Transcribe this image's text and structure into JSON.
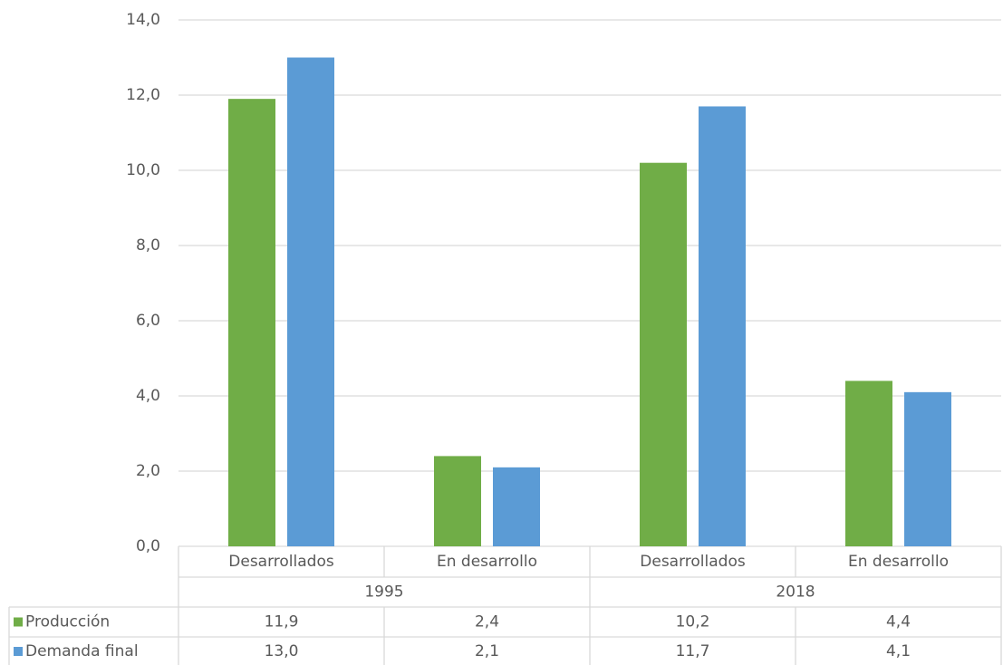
{
  "chart_data": {
    "type": "bar",
    "categories": [
      "Desarrollados",
      "En desarrollo",
      "Desarrollados",
      "En desarrollo"
    ],
    "category_groups": [
      "1995",
      "2018"
    ],
    "series": [
      {
        "name": "Producción",
        "color": "#70ad47",
        "values": [
          11.9,
          2.4,
          10.2,
          4.4
        ],
        "value_labels": [
          "11,9",
          "2,4",
          "10,2",
          "4,4"
        ]
      },
      {
        "name": "Demanda final",
        "color": "#5b9bd5",
        "values": [
          13.0,
          2.1,
          11.7,
          4.1
        ],
        "value_labels": [
          "13,0",
          "2,1",
          "11,7",
          "4,1"
        ]
      }
    ],
    "ylim": [
      0,
      14
    ],
    "yticks": [
      {
        "value": 0,
        "label": "0,0"
      },
      {
        "value": 2,
        "label": "2,0"
      },
      {
        "value": 4,
        "label": "4,0"
      },
      {
        "value": 6,
        "label": "6,0"
      },
      {
        "value": 8,
        "label": "8,0"
      },
      {
        "value": 10,
        "label": "10,0"
      },
      {
        "value": 12,
        "label": "12,0"
      },
      {
        "value": 14,
        "label": "14,0"
      }
    ],
    "grid": true,
    "data_table": true
  }
}
